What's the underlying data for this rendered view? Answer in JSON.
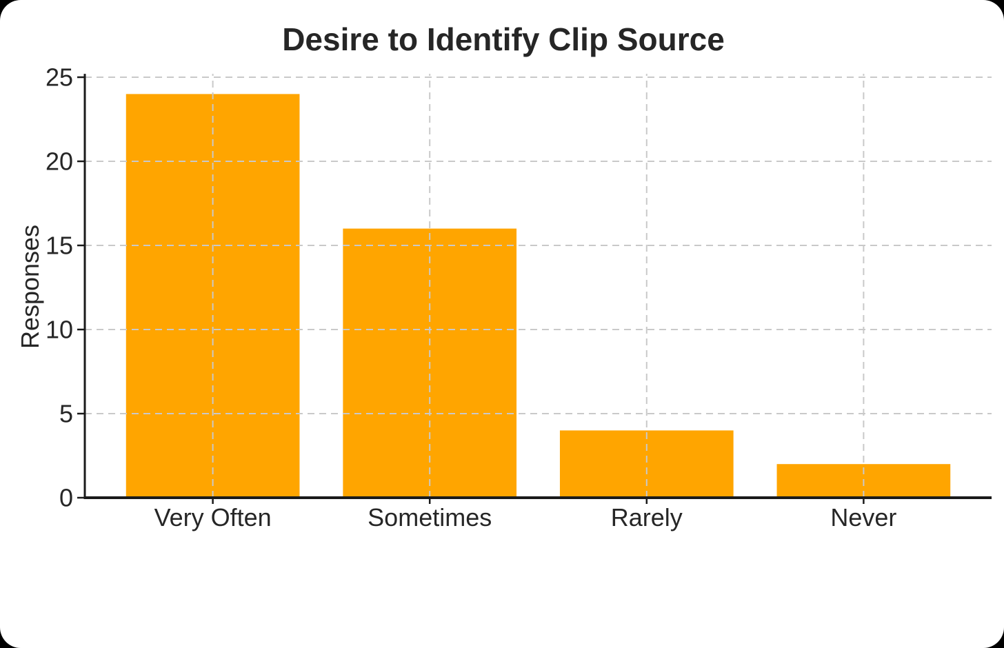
{
  "frame": {
    "page_background": "#000000",
    "card_background": "#ffffff"
  },
  "chart_data": {
    "type": "bar",
    "title": "Desire to Identify Clip Source",
    "categories": [
      "Very Often",
      "Sometimes",
      "Rarely",
      "Never"
    ],
    "values": [
      24,
      16,
      4,
      2
    ],
    "xlabel": "",
    "ylabel": "Responses",
    "ylim": [
      0,
      25.2
    ],
    "yticks": [
      0,
      5,
      10,
      15,
      20,
      25
    ],
    "grid": "on",
    "grid_style": "dashed",
    "legend": "none",
    "bar_color": "#FFA500",
    "grid_color": "#c9c9c9",
    "axis_color": "#1a1a1a",
    "text_color": "#262626"
  }
}
